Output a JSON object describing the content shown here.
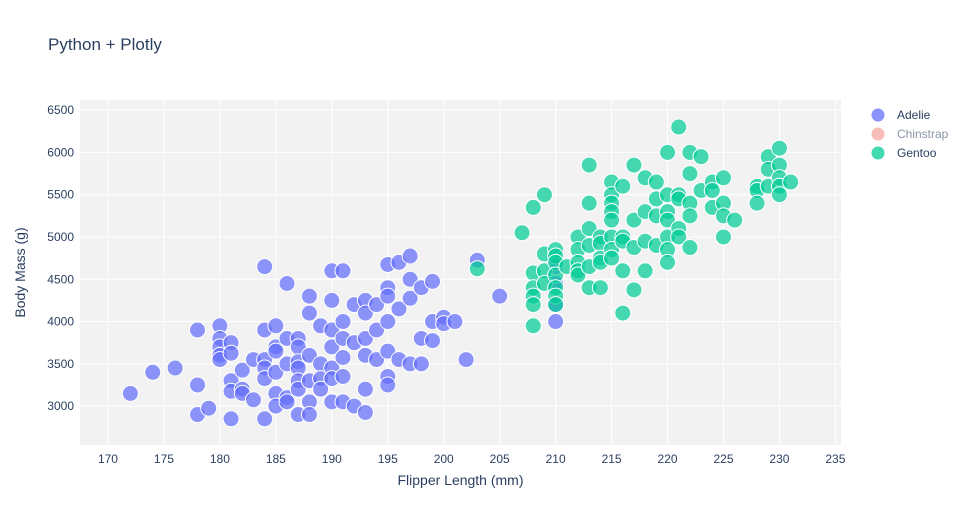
{
  "chart_data": {
    "type": "scatter",
    "title": "Python + Plotly",
    "xlabel": "Flipper Length (mm)",
    "ylabel": "Body Mass (g)",
    "xlim": [
      167.5,
      235.5
    ],
    "ylim": [
      2540,
      6620
    ],
    "x_ticks": [
      170,
      175,
      180,
      185,
      190,
      195,
      200,
      205,
      210,
      215,
      220,
      225,
      230,
      235
    ],
    "y_ticks": [
      3000,
      3500,
      4000,
      4500,
      5000,
      5500,
      6000,
      6500
    ],
    "grid": true,
    "background": "#f2f2f2",
    "legend_placement": "top-right",
    "series": [
      {
        "name": "Adelie",
        "color": "#636efa",
        "visible": true,
        "points": [
          [
            172,
            3150
          ],
          [
            174,
            3400
          ],
          [
            176,
            3450
          ],
          [
            178,
            3900
          ],
          [
            178,
            3250
          ],
          [
            178,
            2900
          ],
          [
            179,
            2975
          ],
          [
            180,
            3950
          ],
          [
            180,
            3800
          ],
          [
            180,
            3700
          ],
          [
            180,
            3600
          ],
          [
            180,
            3550
          ],
          [
            181,
            3750
          ],
          [
            181,
            3625
          ],
          [
            181,
            3300
          ],
          [
            181,
            3175
          ],
          [
            181,
            2850
          ],
          [
            182,
            3425
          ],
          [
            182,
            3200
          ],
          [
            182,
            3150
          ],
          [
            183,
            3550
          ],
          [
            183,
            3075
          ],
          [
            184,
            4650
          ],
          [
            184,
            3900
          ],
          [
            184,
            3550
          ],
          [
            184,
            3450
          ],
          [
            184,
            3325
          ],
          [
            184,
            2850
          ],
          [
            185,
            3950
          ],
          [
            185,
            3700
          ],
          [
            185,
            3650
          ],
          [
            185,
            3400
          ],
          [
            185,
            3150
          ],
          [
            185,
            3000
          ],
          [
            186,
            4450
          ],
          [
            186,
            3800
          ],
          [
            186,
            3500
          ],
          [
            186,
            3100
          ],
          [
            186,
            3050
          ],
          [
            187,
            3800
          ],
          [
            187,
            3700
          ],
          [
            187,
            3525
          ],
          [
            187,
            3450
          ],
          [
            187,
            3300
          ],
          [
            187,
            3200
          ],
          [
            187,
            2900
          ],
          [
            188,
            4300
          ],
          [
            188,
            4100
          ],
          [
            188,
            3600
          ],
          [
            188,
            3300
          ],
          [
            188,
            3050
          ],
          [
            188,
            2900
          ],
          [
            189,
            3950
          ],
          [
            189,
            3500
          ],
          [
            189,
            3325
          ],
          [
            189,
            3200
          ],
          [
            190,
            4600
          ],
          [
            190,
            4250
          ],
          [
            190,
            3900
          ],
          [
            190,
            3700
          ],
          [
            190,
            3450
          ],
          [
            190,
            3325
          ],
          [
            190,
            3050
          ],
          [
            191,
            4600
          ],
          [
            191,
            4000
          ],
          [
            191,
            3800
          ],
          [
            191,
            3575
          ],
          [
            191,
            3350
          ],
          [
            191,
            3050
          ],
          [
            192,
            4200
          ],
          [
            192,
            3750
          ],
          [
            192,
            3000
          ],
          [
            193,
            4250
          ],
          [
            193,
            4100
          ],
          [
            193,
            3800
          ],
          [
            193,
            3600
          ],
          [
            193,
            3200
          ],
          [
            193,
            2925
          ],
          [
            194,
            4200
          ],
          [
            194,
            3900
          ],
          [
            194,
            3550
          ],
          [
            195,
            4675
          ],
          [
            195,
            4400
          ],
          [
            195,
            4300
          ],
          [
            195,
            4000
          ],
          [
            195,
            3650
          ],
          [
            195,
            3350
          ],
          [
            195,
            3250
          ],
          [
            196,
            4700
          ],
          [
            196,
            4150
          ],
          [
            196,
            3550
          ],
          [
            197,
            4775
          ],
          [
            197,
            4500
          ],
          [
            197,
            4275
          ],
          [
            197,
            3500
          ],
          [
            198,
            4400
          ],
          [
            198,
            3800
          ],
          [
            198,
            3500
          ],
          [
            199,
            4475
          ],
          [
            199,
            4000
          ],
          [
            199,
            3775
          ],
          [
            200,
            4050
          ],
          [
            200,
            3975
          ],
          [
            201,
            4000
          ],
          [
            202,
            3550
          ],
          [
            203,
            4725
          ],
          [
            205,
            4300
          ],
          [
            210,
            4000
          ],
          [
            210,
            4200
          ],
          [
            210,
            4450
          ],
          [
            210,
            4650
          ]
        ]
      },
      {
        "name": "Chinstrap",
        "color": "#f4a8a2",
        "visible": false,
        "points": []
      },
      {
        "name": "Gentoo",
        "color": "#00cc96",
        "visible": true,
        "points": [
          [
            203,
            4625
          ],
          [
            207,
            5050
          ],
          [
            208,
            5350
          ],
          [
            208,
            4575
          ],
          [
            208,
            4400
          ],
          [
            208,
            4300
          ],
          [
            208,
            4200
          ],
          [
            208,
            3950
          ],
          [
            209,
            5500
          ],
          [
            209,
            4800
          ],
          [
            209,
            4600
          ],
          [
            209,
            4450
          ],
          [
            210,
            4850
          ],
          [
            210,
            4775
          ],
          [
            210,
            4700
          ],
          [
            210,
            4550
          ],
          [
            210,
            4400
          ],
          [
            210,
            4300
          ],
          [
            210,
            4200
          ],
          [
            211,
            4650
          ],
          [
            212,
            5000
          ],
          [
            212,
            4850
          ],
          [
            212,
            4700
          ],
          [
            212,
            4600
          ],
          [
            212,
            4550
          ],
          [
            213,
            5850
          ],
          [
            213,
            5400
          ],
          [
            213,
            5100
          ],
          [
            213,
            4900
          ],
          [
            213,
            4650
          ],
          [
            213,
            4400
          ],
          [
            214,
            5000
          ],
          [
            214,
            4925
          ],
          [
            214,
            4750
          ],
          [
            214,
            4700
          ],
          [
            214,
            4400
          ],
          [
            215,
            5650
          ],
          [
            215,
            5500
          ],
          [
            215,
            5400
          ],
          [
            215,
            5300
          ],
          [
            215,
            5200
          ],
          [
            215,
            5000
          ],
          [
            215,
            4850
          ],
          [
            215,
            4750
          ],
          [
            216,
            5600
          ],
          [
            216,
            5000
          ],
          [
            216,
            4950
          ],
          [
            216,
            4600
          ],
          [
            216,
            4100
          ],
          [
            217,
            5850
          ],
          [
            217,
            5200
          ],
          [
            217,
            4875
          ],
          [
            217,
            4375
          ],
          [
            218,
            5700
          ],
          [
            218,
            5300
          ],
          [
            218,
            4950
          ],
          [
            218,
            4600
          ],
          [
            219,
            5650
          ],
          [
            219,
            5450
          ],
          [
            219,
            5250
          ],
          [
            219,
            4900
          ],
          [
            220,
            6000
          ],
          [
            220,
            5500
          ],
          [
            220,
            5300
          ],
          [
            220,
            5200
          ],
          [
            220,
            5000
          ],
          [
            220,
            4850
          ],
          [
            220,
            4700
          ],
          [
            221,
            6300
          ],
          [
            221,
            5500
          ],
          [
            221,
            5450
          ],
          [
            221,
            5100
          ],
          [
            221,
            5000
          ],
          [
            222,
            6000
          ],
          [
            222,
            5750
          ],
          [
            222,
            5400
          ],
          [
            222,
            5250
          ],
          [
            222,
            4875
          ],
          [
            223,
            5950
          ],
          [
            223,
            5550
          ],
          [
            224,
            5650
          ],
          [
            224,
            5550
          ],
          [
            224,
            5350
          ],
          [
            225,
            5700
          ],
          [
            225,
            5400
          ],
          [
            225,
            5250
          ],
          [
            225,
            5000
          ],
          [
            226,
            5200
          ],
          [
            228,
            5600
          ],
          [
            228,
            5550
          ],
          [
            228,
            5400
          ],
          [
            229,
            5950
          ],
          [
            229,
            5800
          ],
          [
            229,
            5600
          ],
          [
            230,
            6050
          ],
          [
            230,
            5850
          ],
          [
            230,
            5700
          ],
          [
            230,
            5600
          ],
          [
            230,
            5500
          ],
          [
            231,
            5650
          ]
        ]
      }
    ]
  }
}
